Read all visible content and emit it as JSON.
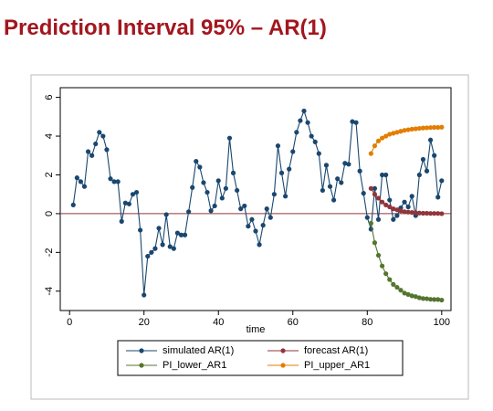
{
  "chart_data": {
    "type": "line",
    "title": "Prediction Interval 95% – AR(1)",
    "x_label": "time",
    "xlim": [
      -2.5,
      102.5
    ],
    "xticks": [
      0,
      20,
      40,
      60,
      80,
      100
    ],
    "ylim": [
      -5,
      6.5
    ],
    "yticks": [
      -4,
      -2,
      0,
      2,
      4,
      6
    ],
    "reference_line": 0,
    "reference_color": "#90353b",
    "legend": "bottom",
    "markers": true,
    "series": [
      {
        "name": "simulated AR(1)",
        "color": "#1a476f",
        "x": [
          1,
          2,
          3,
          4,
          5,
          6,
          7,
          8,
          9,
          10,
          11,
          12,
          13,
          14,
          15,
          16,
          17,
          18,
          19,
          20,
          21,
          22,
          23,
          24,
          25,
          26,
          27,
          28,
          29,
          30,
          31,
          32,
          33,
          34,
          35,
          36,
          37,
          38,
          39,
          40,
          41,
          42,
          43,
          44,
          45,
          46,
          47,
          48,
          49,
          50,
          51,
          52,
          53,
          54,
          55,
          56,
          57,
          58,
          59,
          60,
          61,
          62,
          63,
          64,
          65,
          66,
          67,
          68,
          69,
          70,
          71,
          72,
          73,
          74,
          75,
          76,
          77,
          78,
          79,
          80,
          81,
          82,
          83,
          84,
          85,
          86,
          87,
          88,
          89,
          90,
          91,
          92,
          93,
          94,
          95,
          96,
          97,
          98,
          99,
          100
        ],
        "values": [
          0.45,
          1.85,
          1.65,
          1.4,
          3.2,
          3.0,
          3.6,
          4.2,
          4.0,
          3.3,
          1.8,
          1.65,
          1.65,
          -0.4,
          0.55,
          0.5,
          1.0,
          1.1,
          -0.85,
          -4.2,
          -2.2,
          -2.0,
          -1.8,
          -0.75,
          -1.6,
          -0.05,
          -1.7,
          -1.8,
          -1.0,
          -1.1,
          -1.1,
          0.1,
          1.35,
          2.7,
          2.4,
          1.6,
          1.1,
          0.15,
          0.4,
          1.7,
          0.8,
          1.3,
          3.9,
          2.1,
          1.2,
          0.25,
          0.4,
          -0.65,
          -0.3,
          -0.9,
          -1.6,
          -0.6,
          0.25,
          -0.2,
          1.0,
          3.5,
          2.1,
          0.9,
          2.3,
          3.2,
          4.2,
          4.8,
          5.3,
          4.7,
          4.0,
          3.7,
          3.1,
          1.2,
          2.5,
          1.4,
          0.7,
          1.8,
          1.6,
          2.6,
          2.55,
          4.75,
          4.7,
          2.2,
          1.05,
          -0.2,
          -0.8,
          1.3,
          -0.3,
          2.0,
          2.0,
          0.7,
          -0.3,
          -0.1,
          0.3,
          0.6,
          0.35,
          0.9,
          -0.1,
          2.0,
          2.8,
          2.2,
          3.8,
          3.0,
          0.85,
          1.7
        ]
      },
      {
        "name": "forecast AR(1)",
        "color": "#90353b",
        "x": [
          81,
          82,
          83,
          84,
          85,
          86,
          87,
          88,
          89,
          90,
          91,
          92,
          93,
          94,
          95,
          96,
          97,
          98,
          99,
          100
        ],
        "values": [
          1.3,
          1.0,
          0.8,
          0.6,
          0.45,
          0.35,
          0.25,
          0.2,
          0.15,
          0.1,
          0.08,
          0.06,
          0.05,
          0.03,
          0.02,
          0.02,
          0.01,
          0.01,
          0.01,
          0.0
        ]
      },
      {
        "name": "PI_lower_AR1",
        "color": "#55752f",
        "x": [
          81,
          82,
          83,
          84,
          85,
          86,
          87,
          88,
          89,
          90,
          91,
          92,
          93,
          94,
          95,
          96,
          97,
          98,
          99,
          100
        ],
        "values": [
          -0.5,
          -1.5,
          -2.15,
          -2.7,
          -3.1,
          -3.4,
          -3.65,
          -3.8,
          -3.95,
          -4.1,
          -4.17,
          -4.24,
          -4.28,
          -4.34,
          -4.38,
          -4.39,
          -4.42,
          -4.43,
          -4.43,
          -4.46
        ]
      },
      {
        "name": "PI_upper_AR1",
        "color": "#e37e00",
        "x": [
          81,
          82,
          83,
          84,
          85,
          86,
          87,
          88,
          89,
          90,
          91,
          92,
          93,
          94,
          95,
          96,
          97,
          98,
          99,
          100
        ],
        "values": [
          3.1,
          3.5,
          3.75,
          3.9,
          4.0,
          4.1,
          4.15,
          4.2,
          4.25,
          4.3,
          4.33,
          4.36,
          4.38,
          4.4,
          4.42,
          4.43,
          4.44,
          4.45,
          4.45,
          4.46
        ]
      }
    ]
  }
}
